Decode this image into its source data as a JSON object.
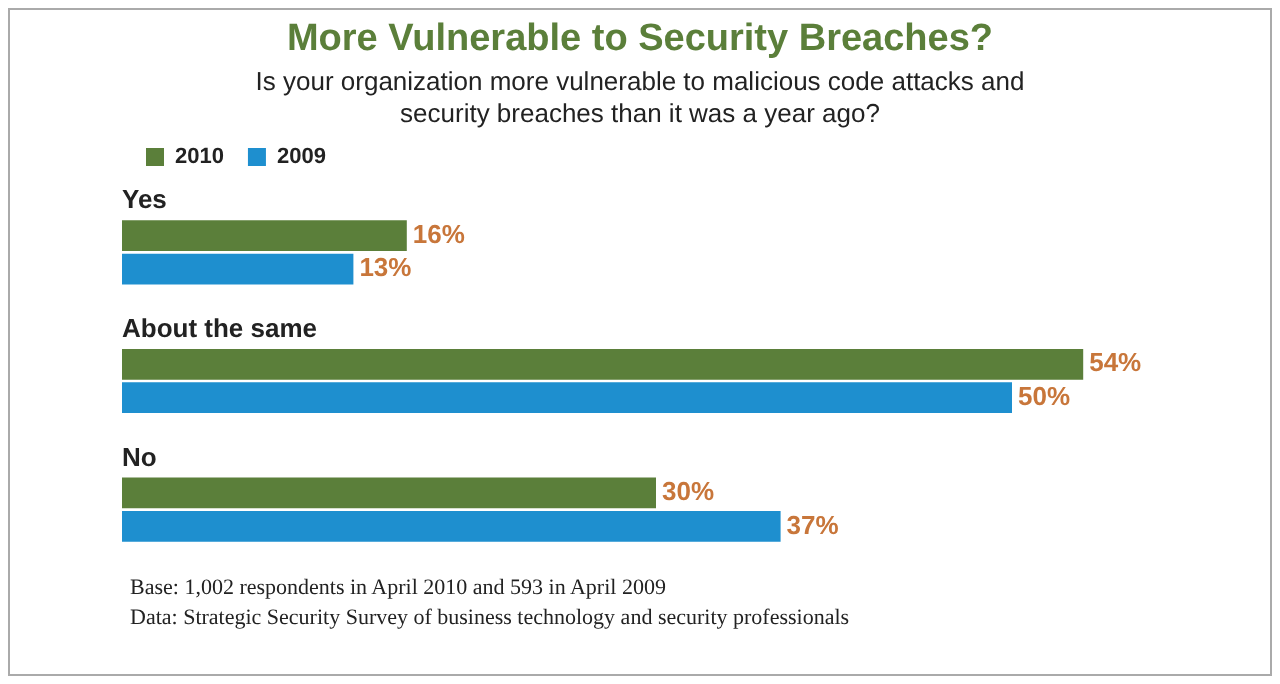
{
  "chart_data": {
    "type": "bar",
    "orientation": "horizontal",
    "title": "More Vulnerable to Security Breaches?",
    "subtitle": "Is your organization more vulnerable to malicious code attacks and security breaches than it was a year ago?",
    "categories": [
      "Yes",
      "About the same",
      "No"
    ],
    "series": [
      {
        "name": "2010",
        "color": "#5b7f3a",
        "values": [
          16,
          54,
          30
        ],
        "value_labels": [
          "16%",
          "54%",
          "30%"
        ]
      },
      {
        "name": "2009",
        "color": "#1e8fcf",
        "values": [
          13,
          50,
          37
        ],
        "value_labels": [
          "13%",
          "50%",
          "37%"
        ]
      }
    ],
    "legend": "top left",
    "annotations": [
      "Base: 1,002 respondents in April 2010 and 593 in April 2009",
      "Data: Strategic Security Survey of business technology and security professionals"
    ]
  }
}
